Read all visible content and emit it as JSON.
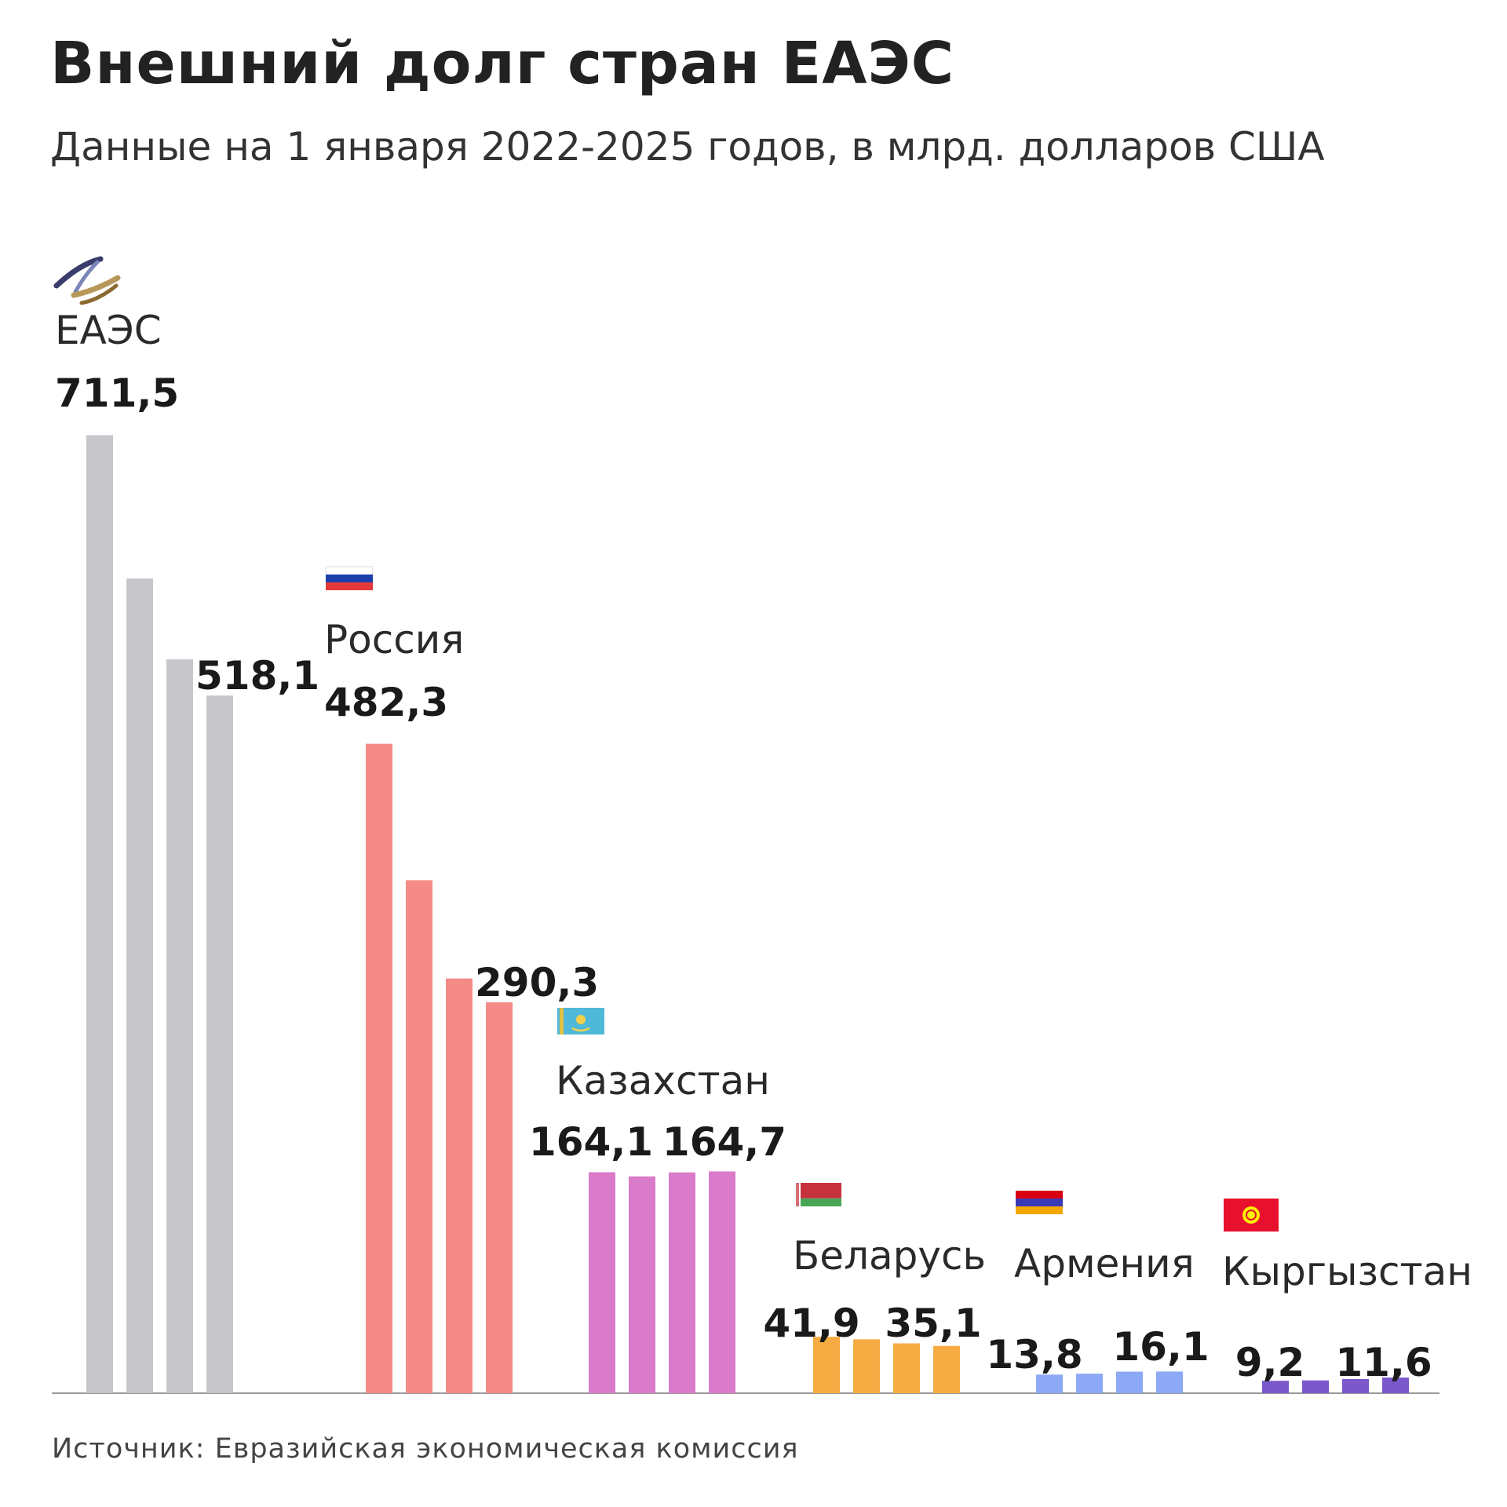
{
  "header": {
    "title": "Внешний долг стран ЕАЭС",
    "subtitle": "Данные на 1 января 2022-2025 годов, в млрд. долларов США"
  },
  "footer": {
    "source": "Источник: Евразийская экономическая комиссия"
  },
  "chart_data": {
    "type": "bar",
    "title": "Внешний долг стран ЕАЭС",
    "subtitle": "Данные на 1 января 2022-2025 годов, в млрд. долларов США",
    "x": [
      2022,
      2023,
      2024,
      2025
    ],
    "ylim": [
      0,
      720
    ],
    "grid": false,
    "legend": "none",
    "groups": [
      {
        "name": "ЕАЭС",
        "icon": "eaeu-emblem-icon",
        "color": "#c7c6ca",
        "values": [
          711.5,
          605,
          545,
          518.1
        ],
        "labels": [
          {
            "text": "711,5",
            "index": 0,
            "placement": "above-name"
          },
          {
            "text": "518,1",
            "index": 3,
            "placement": "near-bar"
          }
        ]
      },
      {
        "name": "Россия",
        "icon": "russia-flag-icon",
        "color": "#f58b87",
        "values": [
          482.3,
          381,
          308,
          290.3
        ],
        "labels": [
          {
            "text": "482,3",
            "index": 0,
            "placement": "above-name"
          },
          {
            "text": "290,3",
            "index": 3,
            "placement": "near-bar"
          }
        ]
      },
      {
        "name": "Казахстан",
        "icon": "kazakhstan-flag-icon",
        "color": "#da7bc9",
        "values": [
          164.1,
          161,
          164,
          164.7
        ],
        "labels": [
          {
            "text": "164,1",
            "index": 0,
            "placement": "near-bar"
          },
          {
            "text": "164,7",
            "index": 3,
            "placement": "near-bar"
          }
        ]
      },
      {
        "name": "Беларусь",
        "icon": "belarus-flag-icon",
        "color": "#f7ab43",
        "values": [
          41.9,
          40,
          37,
          35.1
        ],
        "labels": [
          {
            "text": "41,9",
            "index": 0,
            "placement": "near-bar"
          },
          {
            "text": "35,1",
            "index": 3,
            "placement": "near-bar"
          }
        ]
      },
      {
        "name": "Армения",
        "icon": "armenia-flag-icon",
        "color": "#8da9f5",
        "values": [
          13.8,
          14.5,
          16,
          16.1
        ],
        "labels": [
          {
            "text": "13,8",
            "index": 0,
            "placement": "near-bar"
          },
          {
            "text": "16,1",
            "index": 3,
            "placement": "near-bar"
          }
        ]
      },
      {
        "name": "Кыргызстан",
        "icon": "kyrgyzstan-flag-icon",
        "color": "#7b59cd",
        "values": [
          9.2,
          9.5,
          10.5,
          11.6
        ],
        "labels": [
          {
            "text": "9,2",
            "index": 0,
            "placement": "near-bar"
          },
          {
            "text": "11,6",
            "index": 3,
            "placement": "near-bar"
          }
        ]
      }
    ]
  }
}
